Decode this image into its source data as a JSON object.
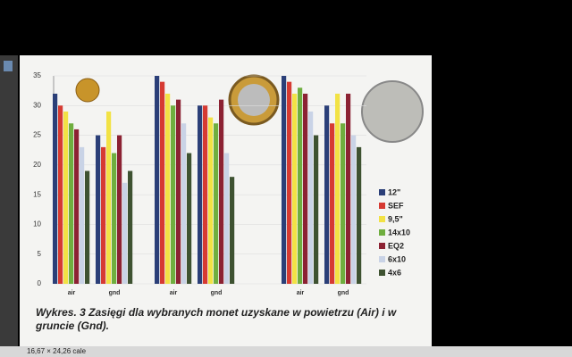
{
  "chart_data": {
    "type": "bar",
    "title": "Wykres. 3 Zasięgi dla wybranych monet uzyskane w powietrzu (Air) i w gruncie (Gnd).",
    "categories": [
      "air",
      "gnd",
      "air",
      "gnd",
      "air",
      "gnd"
    ],
    "series": [
      {
        "name": "12\"",
        "color": "#2b3f78",
        "values": [
          32,
          25,
          35,
          30,
          35,
          30
        ]
      },
      {
        "name": "SEF",
        "color": "#d63a32",
        "values": [
          30,
          23,
          34,
          30,
          34,
          27
        ]
      },
      {
        "name": "9,5\"",
        "color": "#f2e245",
        "values": [
          29,
          29,
          32,
          28,
          32,
          32
        ]
      },
      {
        "name": "14x10",
        "color": "#6fae3f",
        "values": [
          27,
          22,
          30,
          27,
          33,
          27
        ]
      },
      {
        "name": "EQ2",
        "color": "#8c2233",
        "values": [
          26,
          25,
          31,
          31,
          32,
          32
        ]
      },
      {
        "name": "6x10",
        "color": "#c9d3e6",
        "values": [
          23,
          17,
          27,
          22,
          29,
          25
        ]
      },
      {
        "name": "4x6",
        "color": "#3e5231",
        "values": [
          19,
          19,
          22,
          18,
          25,
          23
        ]
      }
    ],
    "ylim": [
      0,
      35
    ],
    "yticks": [
      0,
      5,
      10,
      15,
      20,
      25,
      30,
      35
    ],
    "grid": true,
    "legend": "right"
  },
  "status_bar": {
    "page_size": "16,67 × 24,26 cale"
  }
}
